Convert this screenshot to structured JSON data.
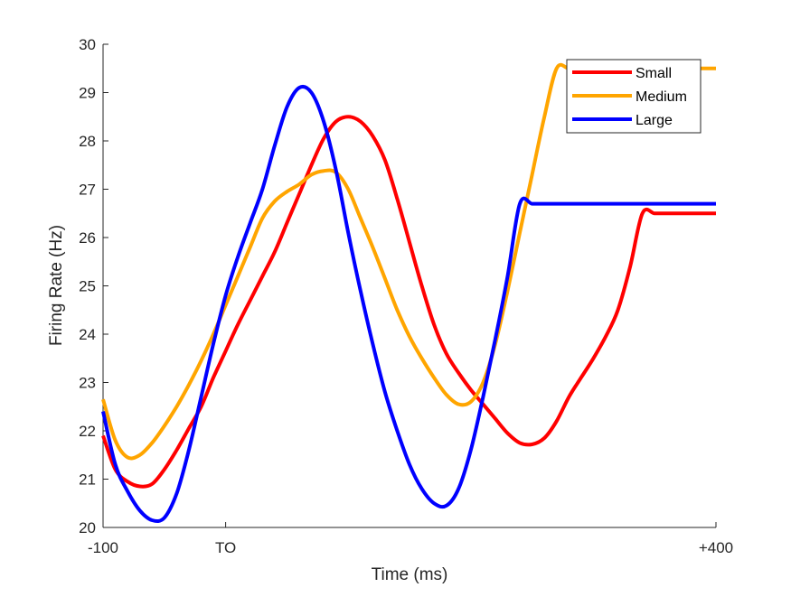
{
  "chart_data": {
    "type": "line",
    "title": "",
    "xlabel": "Time (ms)",
    "ylabel": "Firing Rate (Hz)",
    "xlim": [
      -100,
      400
    ],
    "ylim": [
      20,
      30
    ],
    "x_ticks": [
      {
        "value": -100,
        "label": "-100"
      },
      {
        "value": 0,
        "label": "TO"
      },
      {
        "value": 400,
        "label": "+400"
      }
    ],
    "y_ticks": [
      {
        "value": 20,
        "label": "20"
      },
      {
        "value": 21,
        "label": "21"
      },
      {
        "value": 22,
        "label": "22"
      },
      {
        "value": 23,
        "label": "23"
      },
      {
        "value": 24,
        "label": "24"
      },
      {
        "value": 25,
        "label": "25"
      },
      {
        "value": 26,
        "label": "26"
      },
      {
        "value": 27,
        "label": "27"
      },
      {
        "value": 28,
        "label": "28"
      },
      {
        "value": 29,
        "label": "29"
      },
      {
        "value": 30,
        "label": "30"
      }
    ],
    "grid": false,
    "legend_position": "top-right",
    "series": [
      {
        "name": "Small",
        "color": "#ff0000",
        "x": [
          -100,
          -90,
          -80,
          -70,
          -60,
          -50,
          -40,
          -30,
          -20,
          -10,
          0,
          10,
          20,
          30,
          40,
          50,
          60,
          70,
          80,
          90,
          100,
          110,
          120,
          130,
          140,
          150,
          160,
          170,
          180,
          190,
          200,
          210,
          220,
          230,
          240,
          250,
          260,
          270,
          280,
          290,
          300,
          310,
          320,
          330,
          340,
          350,
          360,
          370,
          380,
          390,
          400
        ],
        "values": [
          21.9,
          21.2,
          20.95,
          20.85,
          20.9,
          21.2,
          21.6,
          22.05,
          22.5,
          23.1,
          23.65,
          24.2,
          24.7,
          25.2,
          25.7,
          26.3,
          26.9,
          27.5,
          28.05,
          28.4,
          28.5,
          28.4,
          28.1,
          27.6,
          26.8,
          25.9,
          25.0,
          24.2,
          23.6,
          23.2,
          22.85,
          22.55,
          22.25,
          21.95,
          21.75,
          21.72,
          21.85,
          22.2,
          22.7,
          23.1,
          23.5,
          23.95,
          24.5,
          25.4,
          26.5,
          26.5,
          26.5,
          26.5,
          26.5,
          26.5,
          26.5
        ]
      },
      {
        "name": "Medium",
        "color": "#ffa500",
        "x": [
          -100,
          -90,
          -80,
          -70,
          -60,
          -50,
          -40,
          -30,
          -20,
          -10,
          0,
          10,
          20,
          30,
          40,
          50,
          60,
          70,
          80,
          90,
          100,
          110,
          120,
          130,
          140,
          150,
          160,
          170,
          180,
          190,
          200,
          210,
          220,
          230,
          240,
          250,
          260,
          270,
          280,
          290,
          300,
          310,
          320,
          330,
          340,
          350,
          360,
          370,
          380,
          390,
          400
        ],
        "values": [
          22.65,
          21.8,
          21.45,
          21.5,
          21.75,
          22.1,
          22.5,
          22.95,
          23.45,
          24.0,
          24.6,
          25.2,
          25.8,
          26.4,
          26.75,
          26.95,
          27.1,
          27.3,
          27.38,
          27.35,
          27.0,
          26.4,
          25.8,
          25.15,
          24.5,
          23.95,
          23.5,
          23.1,
          22.75,
          22.55,
          22.6,
          23.0,
          23.8,
          24.9,
          26.1,
          27.3,
          28.5,
          29.5,
          29.5,
          29.5,
          29.5,
          29.5,
          29.5,
          29.5,
          29.5,
          29.5,
          29.5,
          29.5,
          29.5,
          29.5,
          29.5
        ]
      },
      {
        "name": "Large",
        "color": "#0000ff",
        "x": [
          -100,
          -90,
          -80,
          -70,
          -60,
          -50,
          -40,
          -30,
          -20,
          -10,
          0,
          10,
          20,
          30,
          40,
          50,
          60,
          70,
          80,
          90,
          100,
          110,
          120,
          130,
          140,
          150,
          160,
          170,
          180,
          190,
          200,
          210,
          220,
          230,
          240,
          250,
          260,
          270,
          280,
          290,
          300,
          310,
          320,
          330,
          340,
          350,
          360,
          370,
          380,
          390,
          400
        ],
        "values": [
          22.4,
          21.3,
          20.75,
          20.35,
          20.15,
          20.2,
          20.7,
          21.6,
          22.7,
          23.8,
          24.8,
          25.6,
          26.3,
          27.0,
          27.9,
          28.7,
          29.1,
          29.0,
          28.4,
          27.4,
          26.1,
          24.9,
          23.8,
          22.8,
          22.0,
          21.3,
          20.8,
          20.5,
          20.45,
          20.8,
          21.6,
          22.7,
          23.9,
          25.2,
          26.7,
          26.7,
          26.7,
          26.7,
          26.7,
          26.7,
          26.7,
          26.7,
          26.7,
          26.7,
          26.7,
          26.7,
          26.7,
          26.7,
          26.7,
          26.7,
          26.7
        ]
      }
    ]
  }
}
